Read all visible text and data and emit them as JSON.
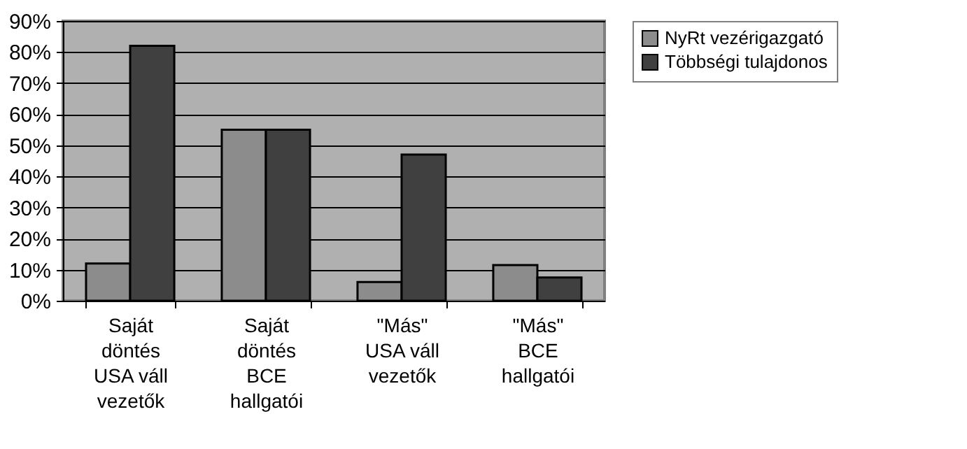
{
  "chart_data": {
    "type": "bar",
    "categories": [
      "Saját döntés USA váll vezetők",
      "Saját döntés BCE hallgatói",
      "\"Más\" USA váll vezetők",
      "\"Más\" BCE hallgatói"
    ],
    "series": [
      {
        "name": "NyRt vezérigazgató",
        "color": "#8c8c8c",
        "values": [
          12,
          55,
          6,
          11.5
        ]
      },
      {
        "name": "Többségi tulajdonos",
        "color": "#404040",
        "values": [
          82,
          55,
          47,
          7.5
        ]
      }
    ],
    "ylim": [
      0,
      90
    ],
    "yticks": [
      {
        "value": 0,
        "label": "0%"
      },
      {
        "value": 10,
        "label": "10%"
      },
      {
        "value": 20,
        "label": "20%"
      },
      {
        "value": 30,
        "label": "30%"
      },
      {
        "value": 40,
        "label": "40%"
      },
      {
        "value": 50,
        "label": "50%"
      },
      {
        "value": 60,
        "label": "60%"
      },
      {
        "value": 70,
        "label": "70%"
      },
      {
        "value": 80,
        "label": "80%"
      },
      {
        "value": 90,
        "label": "90%"
      }
    ],
    "grid": "y",
    "legend": "right"
  }
}
